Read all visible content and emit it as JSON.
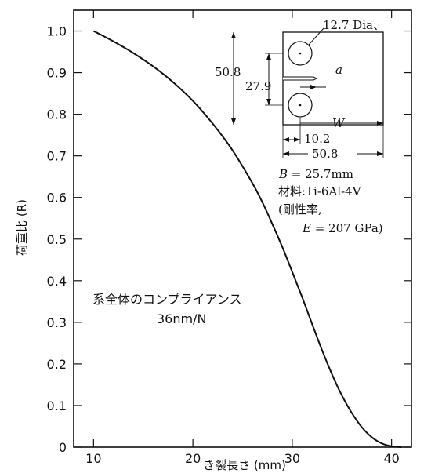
{
  "chart_data": {
    "type": "line",
    "title": "",
    "xlabel": "き裂長さ (mm)",
    "ylabel": "荷重比 (R)",
    "xlim": [
      8,
      42
    ],
    "ylim": [
      0,
      1.05
    ],
    "x_ticks": [
      10,
      20,
      30,
      40
    ],
    "y_ticks": [
      0,
      0.1,
      0.2,
      0.3,
      0.4,
      0.5,
      0.6,
      0.7,
      0.8,
      0.9,
      1.0
    ],
    "x_tick_labels": [
      "10",
      "20",
      "30",
      "40"
    ],
    "y_tick_labels": [
      "0",
      "0.1",
      "0.2",
      "0.3",
      "0.4",
      "0.5",
      "0.6",
      "0.7",
      "0.8",
      "0.9",
      "1.0"
    ],
    "grid": false,
    "series": [
      {
        "x": [
          10,
          12,
          14,
          16,
          18,
          20,
          22,
          24,
          26,
          27,
          28,
          29,
          30,
          31,
          32,
          33,
          34,
          35,
          36,
          37,
          38,
          39,
          40,
          41
        ],
        "y": [
          1.0,
          0.975,
          0.947,
          0.915,
          0.877,
          0.832,
          0.777,
          0.713,
          0.634,
          0.588,
          0.536,
          0.481,
          0.421,
          0.36,
          0.296,
          0.233,
          0.175,
          0.124,
          0.082,
          0.048,
          0.024,
          0.009,
          0.002,
          0.0
        ]
      }
    ],
    "annotations": {
      "compliance_line1": "系全体のコンプライアンス",
      "compliance_line2": "36nm/N"
    }
  },
  "inset": {
    "hole_dia": "12.7 Dia、",
    "height_total": "50.8",
    "half_height": "27.9",
    "crack_label": "a",
    "w_label": "W",
    "pin_offset": "10.2",
    "width_total": "50.8",
    "thickness_sym": "B",
    "thickness_val": " = 25.7mm",
    "material": "材料:Ti-6Al-4V",
    "modulus_name": "(剛性率,",
    "modulus_sym": "E",
    "modulus_val": " = 207 GPa)"
  }
}
